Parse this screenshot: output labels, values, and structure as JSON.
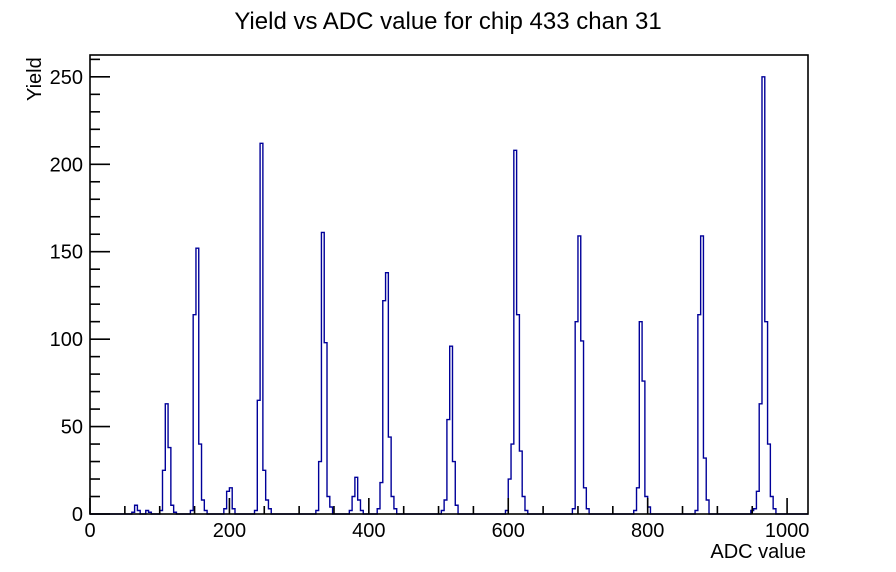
{
  "chart_data": {
    "type": "bar",
    "style": "root-histogram-outline",
    "title": "Yield vs ADC value for chip 433 chan 31",
    "xlabel": "ADC value",
    "ylabel": "Yield",
    "xlim": [
      0,
      1030
    ],
    "ylim": [
      0,
      262.5
    ],
    "x_major_tick_step": 200,
    "x_minor_tick_step": 50,
    "y_major_tick_step": 50,
    "y_minor_tick_step": 10,
    "x_tick_labels": [
      "0",
      "200",
      "400",
      "600",
      "800",
      "1000"
    ],
    "y_tick_labels": [
      "0",
      "50",
      "100",
      "150",
      "200",
      "250"
    ],
    "grid": false,
    "legend": false,
    "bin_width": 4,
    "bins": [
      [
        60,
        1
      ],
      [
        64,
        5
      ],
      [
        68,
        2
      ],
      [
        80,
        2
      ],
      [
        84,
        1
      ],
      [
        100,
        2
      ],
      [
        104,
        25
      ],
      [
        108,
        63
      ],
      [
        112,
        38
      ],
      [
        116,
        5
      ],
      [
        120,
        1
      ],
      [
        144,
        2
      ],
      [
        148,
        114
      ],
      [
        152,
        152
      ],
      [
        156,
        40
      ],
      [
        160,
        8
      ],
      [
        164,
        2
      ],
      [
        192,
        3
      ],
      [
        196,
        13
      ],
      [
        200,
        15
      ],
      [
        204,
        3
      ],
      [
        236,
        2
      ],
      [
        240,
        65
      ],
      [
        244,
        212
      ],
      [
        248,
        25
      ],
      [
        252,
        8
      ],
      [
        256,
        3
      ],
      [
        324,
        2
      ],
      [
        328,
        30
      ],
      [
        332,
        161
      ],
      [
        336,
        98
      ],
      [
        340,
        10
      ],
      [
        344,
        4
      ],
      [
        372,
        2
      ],
      [
        376,
        10
      ],
      [
        380,
        21
      ],
      [
        384,
        8
      ],
      [
        388,
        2
      ],
      [
        412,
        3
      ],
      [
        416,
        18
      ],
      [
        420,
        122
      ],
      [
        424,
        138
      ],
      [
        428,
        44
      ],
      [
        432,
        10
      ],
      [
        436,
        3
      ],
      [
        504,
        2
      ],
      [
        508,
        8
      ],
      [
        512,
        54
      ],
      [
        516,
        96
      ],
      [
        520,
        30
      ],
      [
        524,
        5
      ],
      [
        596,
        2
      ],
      [
        600,
        20
      ],
      [
        604,
        40
      ],
      [
        608,
        208
      ],
      [
        612,
        114
      ],
      [
        616,
        36
      ],
      [
        620,
        10
      ],
      [
        624,
        2
      ],
      [
        692,
        3
      ],
      [
        696,
        110
      ],
      [
        700,
        159
      ],
      [
        704,
        99
      ],
      [
        708,
        15
      ],
      [
        712,
        3
      ],
      [
        780,
        2
      ],
      [
        784,
        15
      ],
      [
        788,
        110
      ],
      [
        792,
        76
      ],
      [
        796,
        10
      ],
      [
        800,
        4
      ],
      [
        868,
        2
      ],
      [
        872,
        114
      ],
      [
        876,
        159
      ],
      [
        880,
        32
      ],
      [
        884,
        8
      ],
      [
        948,
        2
      ],
      [
        952,
        3
      ],
      [
        956,
        13
      ],
      [
        960,
        63
      ],
      [
        964,
        250
      ],
      [
        968,
        110
      ],
      [
        972,
        40
      ],
      [
        976,
        10
      ],
      [
        980,
        3
      ]
    ],
    "peaks": [
      {
        "adc": 66,
        "yield": 5
      },
      {
        "adc": 110,
        "yield": 63
      },
      {
        "adc": 154,
        "yield": 152
      },
      {
        "adc": 202,
        "yield": 15
      },
      {
        "adc": 246,
        "yield": 212
      },
      {
        "adc": 334,
        "yield": 161
      },
      {
        "adc": 382,
        "yield": 21
      },
      {
        "adc": 426,
        "yield": 138
      },
      {
        "adc": 518,
        "yield": 96
      },
      {
        "adc": 610,
        "yield": 208
      },
      {
        "adc": 702,
        "yield": 159
      },
      {
        "adc": 790,
        "yield": 110
      },
      {
        "adc": 878,
        "yield": 159
      },
      {
        "adc": 966,
        "yield": 250
      }
    ],
    "colors": {
      "histogram_line": "#000099",
      "axis": "#000000",
      "background": "#ffffff",
      "text": "#000000"
    }
  }
}
